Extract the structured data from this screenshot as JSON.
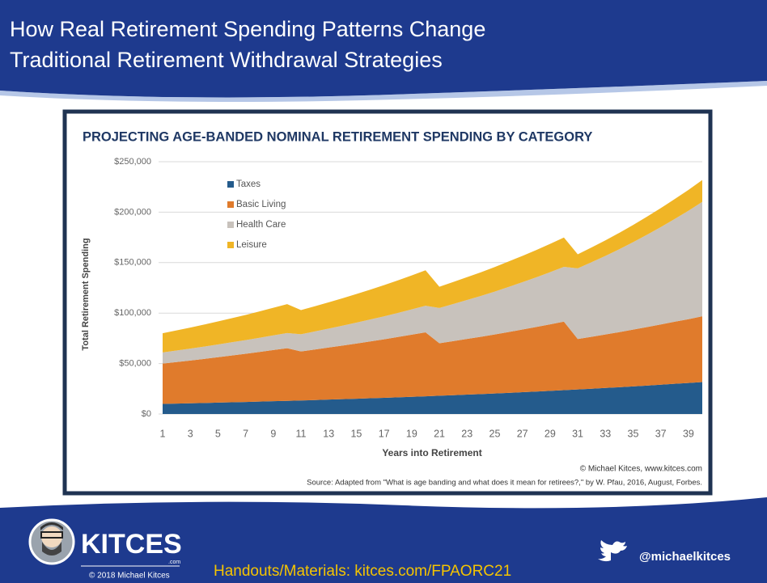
{
  "slide": {
    "title_lines": [
      "How Real Retirement Spending Patterns Change",
      "Traditional Retirement Withdrawal Strategies"
    ],
    "logo_text": "KITCES",
    "logo_sub": ".com",
    "copyright": "© 2018 Michael Kitces",
    "handouts": "Handouts/Materials: kitces.com/FPAORC21",
    "twitter": "@michaelkitces"
  },
  "chart_data": {
    "type": "stacked_area",
    "title": "PROJECTING AGE-BANDED NOMINAL RETIREMENT SPENDING BY CATEGORY",
    "x_label": "Years into Retirement",
    "y_label": "Total Retirement Spending",
    "credit": "© Michael Kitces, www.kitces.com",
    "source": "Source: Adapted from \"What is age banding and what does it mean for retirees?,\" by W. Pfau, 2016, August, Forbes.",
    "legend": "upper left",
    "x": [
      1,
      2,
      3,
      4,
      5,
      6,
      7,
      8,
      9,
      10,
      11,
      12,
      13,
      14,
      15,
      16,
      17,
      18,
      19,
      20,
      21,
      22,
      23,
      24,
      25,
      26,
      27,
      28,
      29,
      30,
      31,
      32,
      33,
      34,
      35,
      36,
      37,
      38,
      39,
      40
    ],
    "xlim": [
      1,
      40
    ],
    "xticks": [
      1,
      3,
      5,
      7,
      9,
      11,
      13,
      15,
      17,
      19,
      21,
      23,
      25,
      27,
      29,
      31,
      33,
      35,
      37,
      39
    ],
    "ylim": [
      0,
      250000
    ],
    "yticks": [
      {
        "value": 0,
        "label": "$0"
      },
      {
        "value": 50000,
        "label": "$50,000"
      },
      {
        "value": 100000,
        "label": "$100,000"
      },
      {
        "value": 150000,
        "label": "$150,000"
      },
      {
        "value": 200000,
        "label": "$200,000"
      },
      {
        "value": 250000,
        "label": "$250,000"
      }
    ],
    "series": [
      {
        "name": "Taxes",
        "color": "#245b8c",
        "values": [
          10000,
          10300,
          10600,
          10900,
          11300,
          11600,
          11900,
          12300,
          12700,
          13000,
          13400,
          13800,
          14300,
          14700,
          15100,
          15600,
          16000,
          16500,
          17000,
          17500,
          18100,
          18600,
          19200,
          19700,
          20300,
          20900,
          21600,
          22200,
          22900,
          23600,
          24300,
          25000,
          25800,
          26500,
          27300,
          28100,
          29000,
          29900,
          30700,
          31700
        ]
      },
      {
        "name": "Basic Living",
        "color": "#e07b2c",
        "values": [
          40000,
          41200,
          42400,
          43700,
          45000,
          46400,
          47800,
          49200,
          50700,
          52200,
          48600,
          50100,
          51600,
          53100,
          54700,
          56300,
          58000,
          59800,
          61600,
          63400,
          52000,
          53600,
          55200,
          56800,
          58500,
          60300,
          62100,
          64000,
          65900,
          67900,
          50000,
          51500,
          53000,
          54600,
          56300,
          58000,
          59700,
          61500,
          63300,
          65200
        ]
      },
      {
        "name": "Health Care",
        "color": "#c8c2bc",
        "values": [
          11000,
          11400,
          11800,
          12200,
          12600,
          13100,
          13500,
          14000,
          14500,
          15000,
          17000,
          17900,
          18700,
          19700,
          20700,
          21700,
          22800,
          23900,
          25100,
          26400,
          35000,
          36800,
          38600,
          40500,
          42500,
          44700,
          46900,
          49200,
          51700,
          54300,
          70000,
          73900,
          77900,
          82200,
          86700,
          91500,
          96500,
          101800,
          107400,
          113300
        ]
      },
      {
        "name": "Leisure",
        "color": "#f0b526",
        "values": [
          19000,
          19900,
          20800,
          21800,
          22800,
          23900,
          25000,
          26200,
          27400,
          28700,
          24000,
          25000,
          26100,
          27200,
          28400,
          29600,
          30900,
          32200,
          33600,
          35100,
          21000,
          21800,
          22600,
          23400,
          24300,
          25200,
          26100,
          27100,
          28100,
          29100,
          14000,
          14700,
          15400,
          16200,
          17000,
          17900,
          18800,
          19700,
          20700,
          21700
        ]
      }
    ]
  }
}
